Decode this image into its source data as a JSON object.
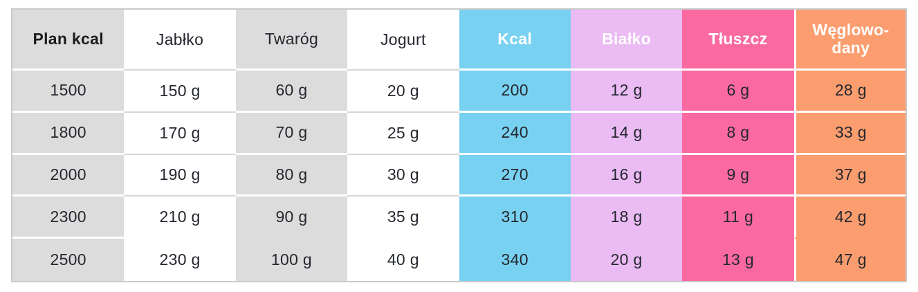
{
  "table": {
    "headers": [
      "Plan kcal",
      "Jabłko",
      "Twaróg",
      "Jogurt",
      "Kcal",
      "Białko",
      "Tłuszcz",
      "Węglowo-dany"
    ],
    "rows": [
      [
        "1500",
        "150 g",
        "60 g",
        "20 g",
        "200",
        "12 g",
        "6 g",
        "28 g"
      ],
      [
        "1800",
        "170 g",
        "70 g",
        "25 g",
        "240",
        "14 g",
        "8 g",
        "33 g"
      ],
      [
        "2000",
        "190 g",
        "80 g",
        "30 g",
        "270",
        "16 g",
        "9 g",
        "37 g"
      ],
      [
        "2300",
        "210 g",
        "90 g",
        "35 g",
        "310",
        "18 g",
        "11 g",
        "42 g"
      ],
      [
        "2500",
        "230 g",
        "100 g",
        "40 g",
        "340",
        "20 g",
        "13 g",
        "47 g"
      ]
    ]
  },
  "colors": {
    "kcal_column": "#79D1F1",
    "bialko_column": "#EBBBF4",
    "tluszcz_column": "#FA6AA1",
    "weglowodany_column": "#FB9D6F",
    "gray_column": "#DCDCDC",
    "separator_white": "#FFFFFF",
    "separator_gray": "#D6D6D6",
    "outer_border": "#C9C9C9",
    "header_text_light": "#FFFFFF",
    "text_dark": "#24272E"
  }
}
